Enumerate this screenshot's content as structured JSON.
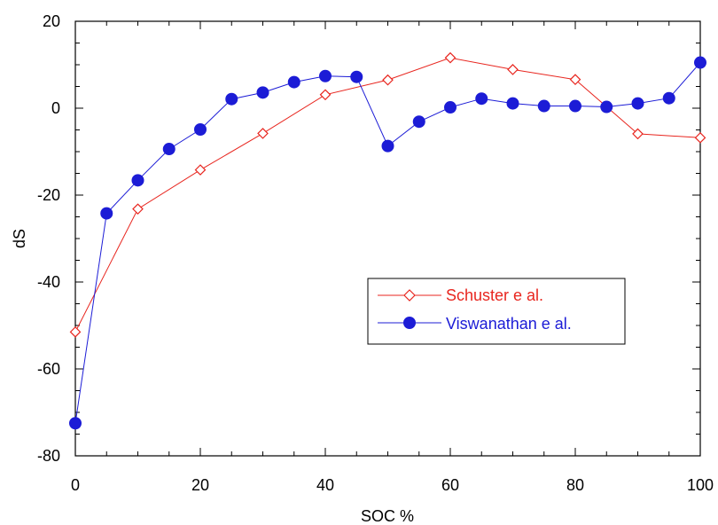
{
  "chart_data": {
    "type": "line",
    "title": "",
    "xlabel": "SOC %",
    "ylabel": "dS",
    "xlim": [
      0,
      100
    ],
    "ylim": [
      -80,
      20
    ],
    "x_ticks": [
      0,
      20,
      40,
      60,
      80,
      100
    ],
    "y_ticks": [
      -80,
      -60,
      -40,
      -20,
      0,
      20
    ],
    "x_tick_labels": [
      "0",
      "20",
      "40",
      "60",
      "80",
      "100"
    ],
    "y_tick_labels": [
      "-80",
      "-60",
      "-40",
      "-20",
      "0",
      "20"
    ],
    "grid": false,
    "legend_position": "center-right",
    "series": [
      {
        "name": "Schuster e al.",
        "color": "#e8261f",
        "marker": "open-diamond",
        "x": [
          0,
          10,
          20,
          30,
          40,
          50,
          60,
          70,
          80,
          90,
          100
        ],
        "y": [
          -51.5,
          -23.2,
          -14.2,
          -5.8,
          3.1,
          6.5,
          11.6,
          8.9,
          6.6,
          -5.9,
          -6.8
        ]
      },
      {
        "name": "Viswanathan e al.",
        "color": "#1c1cd6",
        "marker": "filled-circle",
        "x": [
          0,
          5,
          10,
          15,
          20,
          25,
          30,
          35,
          40,
          45,
          50,
          55,
          60,
          65,
          70,
          75,
          80,
          85,
          90,
          95,
          100
        ],
        "y": [
          -72.5,
          -24.2,
          -16.6,
          -9.4,
          -4.9,
          2.1,
          3.6,
          6.0,
          7.4,
          7.2,
          -8.7,
          -3.1,
          0.2,
          2.2,
          1.1,
          0.5,
          0.5,
          0.3,
          1.1,
          2.3,
          10.5
        ]
      }
    ]
  }
}
